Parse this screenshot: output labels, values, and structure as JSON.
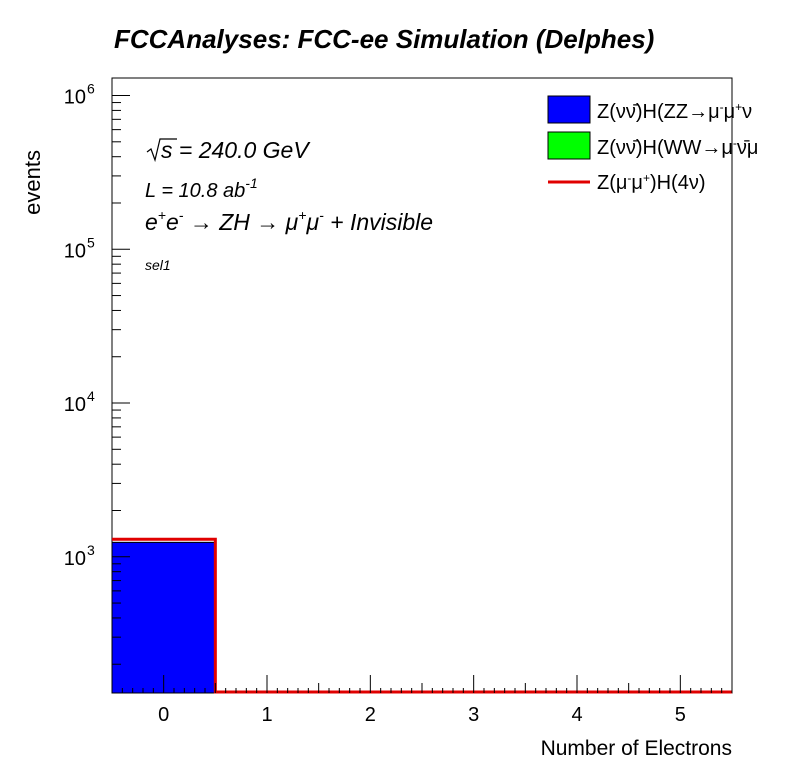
{
  "chart_data": {
    "type": "bar",
    "title": "FCCAnalyses: FCC-ee Simulation (Delphes)",
    "xlabel": "Number of Electrons",
    "ylabel": "events",
    "y_scale": "log",
    "ylim": [
      130,
      1300000
    ],
    "xlim": [
      -0.5,
      5.5
    ],
    "x_ticks": [
      "0",
      "1",
      "2",
      "3",
      "4",
      "5"
    ],
    "y_ticks": [
      {
        "value": 1000,
        "base": "10",
        "exp": "3"
      },
      {
        "value": 10000,
        "base": "10",
        "exp": "4"
      },
      {
        "value": 100000,
        "base": "10",
        "exp": "5"
      },
      {
        "value": 1000000,
        "base": "10",
        "exp": "6"
      }
    ],
    "annotations": {
      "sqrt_s": {
        "sym": "s",
        "rest": " = 240.0 GeV"
      },
      "lumi": {
        "main": "L = 10.8 ab",
        "sup": "-1"
      },
      "process": {
        "e": "e",
        "p": "+",
        "e2": "e",
        "m": "-",
        "arrow1": " → ZH  → μ",
        "mp": "+",
        "mu": "μ",
        "mm": "-",
        "rest": " + Invisible"
      },
      "selection": "sel1"
    },
    "legend_position": "top-right",
    "legend": [
      {
        "label_parts": [
          "Z(νν̄)H(ZZ→μ",
          "-",
          "μ",
          "+",
          "ν"
        ],
        "style": "fill",
        "color": "#0000ff"
      },
      {
        "label_parts": [
          "Z(νν̄)H(WW→μ",
          "-",
          "ν̄μ"
        ],
        "style": "fill",
        "color": "#00ff00"
      },
      {
        "label_parts": [
          "Z(μ",
          "-",
          "μ",
          "+",
          ")H(4ν)"
        ],
        "style": "line",
        "color": "#e00000"
      }
    ],
    "series": [
      {
        "style": "fill",
        "color": "#00ff00",
        "bins": [
          [
            -0.5,
            0.5,
            1240
          ]
        ]
      },
      {
        "style": "fill",
        "color": "#0000ff",
        "bins": [
          [
            -0.5,
            0.5,
            1240
          ]
        ]
      },
      {
        "style": "line",
        "color": "#e00000",
        "bins": [
          [
            -0.5,
            0.5,
            1300
          ]
        ]
      }
    ]
  }
}
